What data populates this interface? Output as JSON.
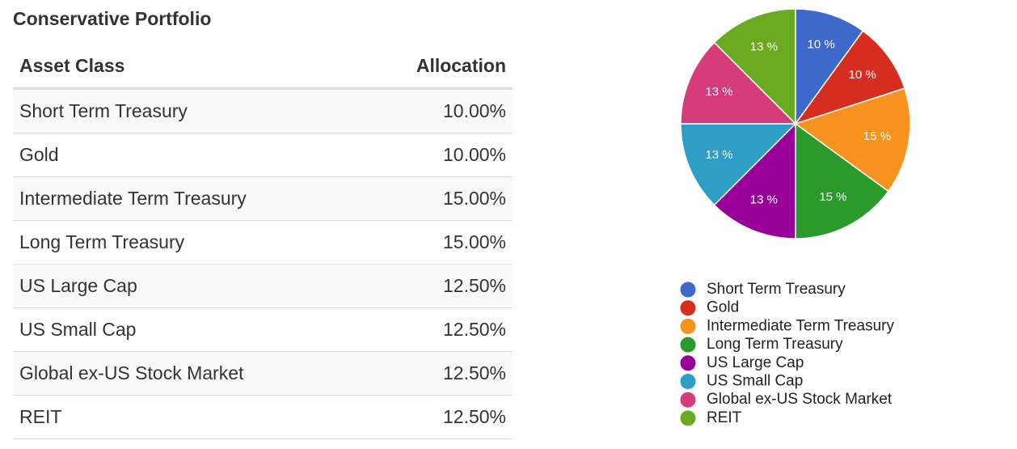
{
  "title": "Conservative Portfolio",
  "table": {
    "columns": [
      "Asset Class",
      "Allocation"
    ],
    "rows": [
      [
        "Short Term Treasury",
        "10.00%"
      ],
      [
        "Gold",
        "10.00%"
      ],
      [
        "Intermediate Term Treasury",
        "15.00%"
      ],
      [
        "Long Term Treasury",
        "15.00%"
      ],
      [
        "US Large Cap",
        "12.50%"
      ],
      [
        "US Small Cap",
        "12.50%"
      ],
      [
        "Global ex-US Stock Market",
        "12.50%"
      ],
      [
        "REIT",
        "12.50%"
      ]
    ]
  },
  "chart_data": {
    "type": "pie",
    "categories": [
      "Short Term Treasury",
      "Gold",
      "Intermediate Term Treasury",
      "Long Term Treasury",
      "US Large Cap",
      "US Small Cap",
      "Global ex-US Stock Market",
      "REIT"
    ],
    "values": [
      10,
      10,
      15,
      15,
      12.5,
      12.5,
      12.5,
      12.5
    ],
    "value_labels": [
      "10 %",
      "10 %",
      "15 %",
      "15 %",
      "13 %",
      "13 %",
      "13 %",
      "13 %"
    ],
    "colors": [
      "#3d68cc",
      "#d62d20",
      "#f7931e",
      "#2a9a2a",
      "#990099",
      "#2e9ec7",
      "#d63c7a",
      "#6aaa1e"
    ],
    "legend": "bottom"
  }
}
